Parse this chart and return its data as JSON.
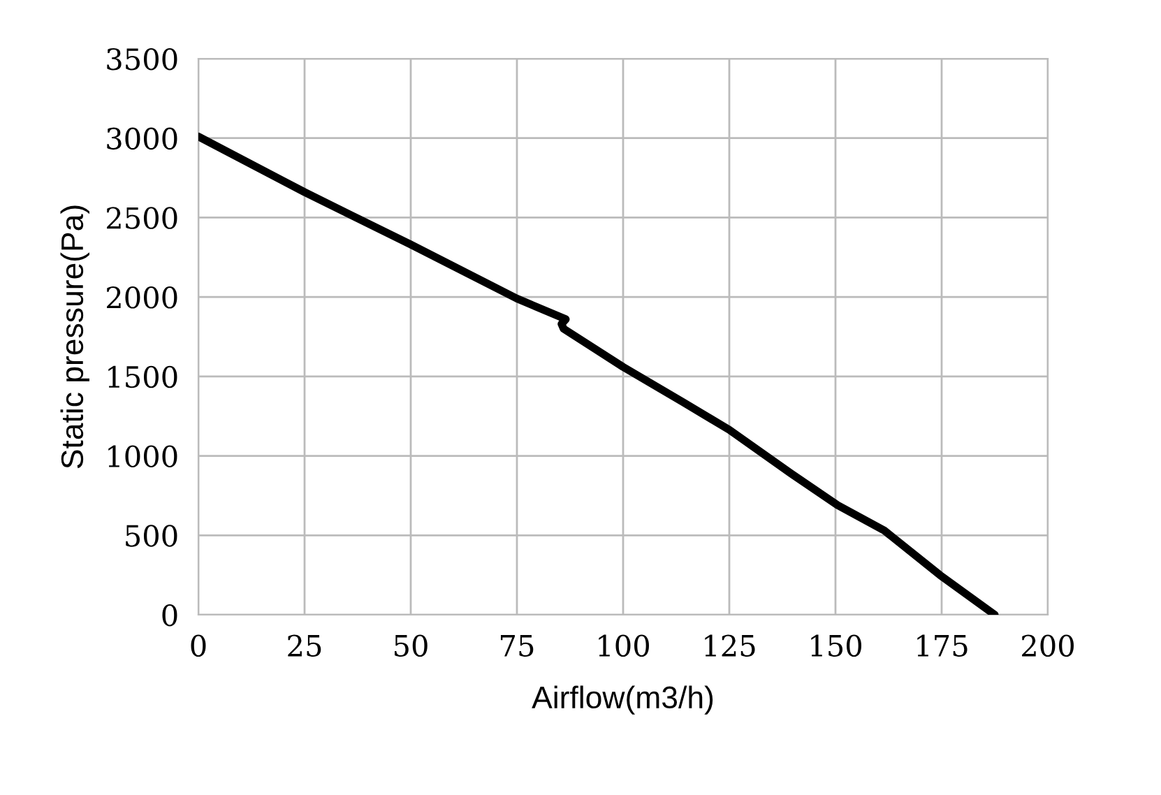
{
  "chart_data": {
    "type": "line",
    "xlabel": "Airflow(m3/h)",
    "ylabel": "Static pressure(Pa)",
    "series": [
      {
        "color": "#000000",
        "x": [
          0,
          25,
          50,
          75,
          86.5,
          85.5,
          86,
          100,
          114,
          125,
          139.5,
          150.5,
          161.5,
          174.6,
          187.5
        ],
        "values": [
          3010,
          2660,
          2330,
          1990,
          1860,
          1830,
          1800,
          1560,
          1340,
          1164,
          890,
          690,
          530,
          250,
          0
        ]
      }
    ],
    "xlim": [
      0,
      200
    ],
    "xticks": [
      0,
      25,
      50,
      75,
      100,
      125,
      150,
      175,
      200
    ],
    "ylim": [
      0,
      3500
    ],
    "yticks": [
      0,
      500,
      1000,
      1500,
      2000,
      2500,
      3000,
      3500
    ],
    "grid": true,
    "marker": "none",
    "line_style": "solid"
  }
}
